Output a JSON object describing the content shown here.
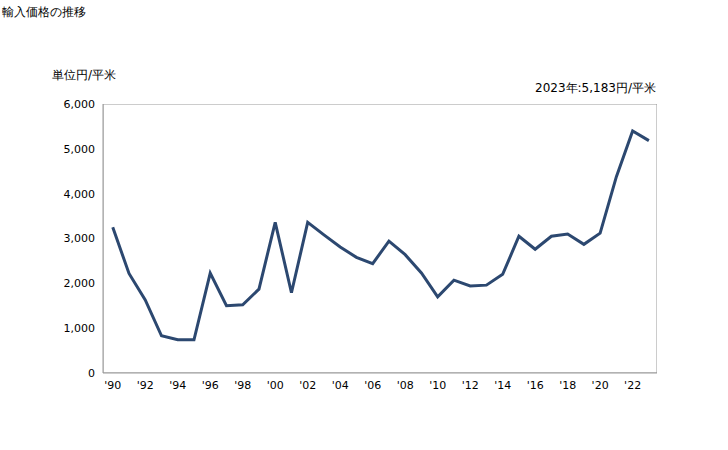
{
  "chart_data": {
    "type": "line",
    "title": "輸入価格の推移",
    "y_label": "単位円/平米",
    "annotation": "2023年:5,183円/平米",
    "x": [
      1990,
      1991,
      1992,
      1993,
      1994,
      1995,
      1996,
      1997,
      1998,
      1999,
      2000,
      2001,
      2002,
      2003,
      2004,
      2005,
      2006,
      2007,
      2008,
      2009,
      2010,
      2011,
      2012,
      2013,
      2014,
      2015,
      2016,
      2017,
      2018,
      2019,
      2020,
      2021,
      2022,
      2023
    ],
    "values": [
      3250,
      2220,
      1630,
      830,
      740,
      740,
      2230,
      1500,
      1520,
      1870,
      3360,
      1790,
      3360,
      3080,
      2810,
      2580,
      2440,
      2940,
      2640,
      2230,
      1700,
      2070,
      1940,
      1960,
      2200,
      3050,
      2760,
      3050,
      3100,
      2870,
      3120,
      4380,
      5400,
      5183
    ],
    "color": "#2c4870",
    "xlim": [
      1989.4,
      2023.5
    ],
    "xticks": [
      {
        "value": 1990,
        "label": "'90"
      },
      {
        "value": 1992,
        "label": "'92"
      },
      {
        "value": 1994,
        "label": "'94"
      },
      {
        "value": 1996,
        "label": "'96"
      },
      {
        "value": 1998,
        "label": "'98"
      },
      {
        "value": 2000,
        "label": "'00"
      },
      {
        "value": 2002,
        "label": "'02"
      },
      {
        "value": 2004,
        "label": "'04"
      },
      {
        "value": 2006,
        "label": "'06"
      },
      {
        "value": 2008,
        "label": "'08"
      },
      {
        "value": 2010,
        "label": "'10"
      },
      {
        "value": 2012,
        "label": "'12"
      },
      {
        "value": 2014,
        "label": "'14"
      },
      {
        "value": 2016,
        "label": "'16"
      },
      {
        "value": 2018,
        "label": "'18"
      },
      {
        "value": 2020,
        "label": "'20"
      },
      {
        "value": 2022,
        "label": "'22"
      }
    ],
    "ylim": [
      0,
      6000
    ],
    "yticks": [
      0,
      {
        "value": 1000,
        "label": "1,000"
      },
      {
        "value": 2000,
        "label": "2,000"
      },
      {
        "value": 3000,
        "label": "3,000"
      },
      {
        "value": 4000,
        "label": "4,000"
      },
      {
        "value": 5000,
        "label": "5,000"
      },
      {
        "value": 6000,
        "label": "6,000"
      }
    ],
    "grid": false
  }
}
